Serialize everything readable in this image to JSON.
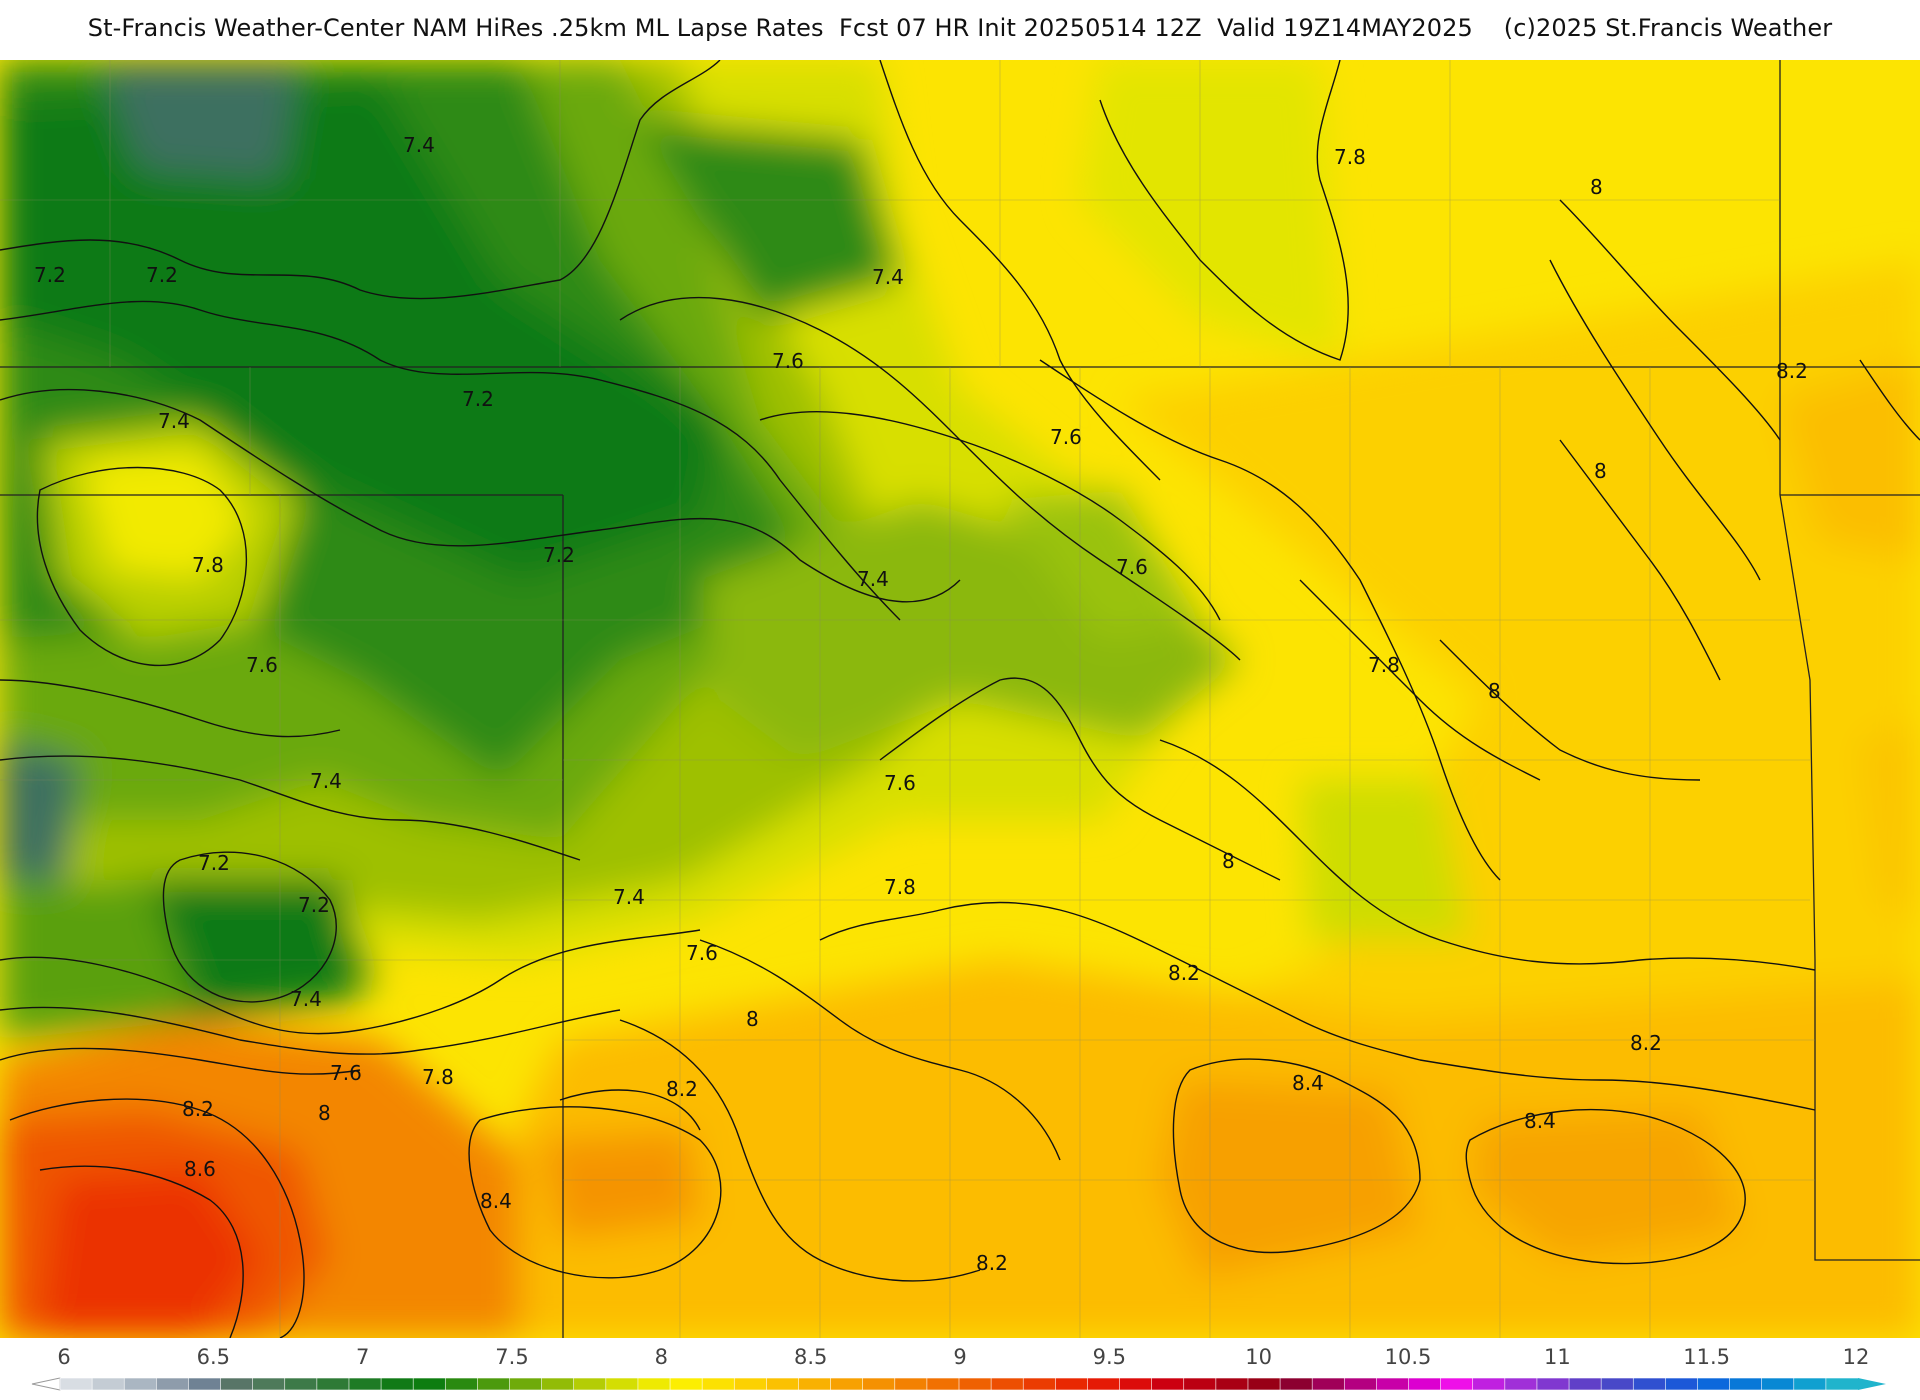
{
  "title": "St-Francis Weather-Center NAM HiRes .25km ML Lapse Rates  Fcst 07 HR Init 20250514 12Z  Valid 19Z14MAY2025    (c)2025 St.Francis Weather",
  "colorbar": {
    "ticks": [
      "6",
      "6.5",
      "7",
      "7.5",
      "8",
      "8.5",
      "9",
      "9.5",
      "10",
      "10.5",
      "11",
      "11.5",
      "12"
    ],
    "colors": [
      "#d8dde3",
      "#c4ccd4",
      "#aab6c2",
      "#8e9cab",
      "#6f8294",
      "#587567",
      "#4e7a5a",
      "#3d7a48",
      "#2e7a36",
      "#1e7b25",
      "#117a16",
      "#0d7d10",
      "#2a8a10",
      "#4c9a0d",
      "#6fab0a",
      "#92bc07",
      "#b4cd05",
      "#d4de03",
      "#eeea02",
      "#fcee02",
      "#fce102",
      "#fcd102",
      "#fbc102",
      "#f9b102",
      "#f7a102",
      "#f59102",
      "#f38102",
      "#f17102",
      "#ef6102",
      "#ed4f02",
      "#eb3c02",
      "#e92802",
      "#e51a05",
      "#dc0c0a",
      "#cc0010",
      "#bb0012",
      "#a90014",
      "#980016",
      "#8c0030",
      "#a00058",
      "#b40080",
      "#c800a8",
      "#dc00d0",
      "#ee10e8",
      "#c020e0",
      "#a030d8",
      "#8038d0",
      "#6040c8",
      "#4848c8",
      "#3050d0",
      "#1c58d8",
      "#0c68dc",
      "#0878d8",
      "#0888d4",
      "#10a0d0",
      "#20b4cc"
    ]
  },
  "contour_labels": [
    {
      "text": "7.4"
    },
    {
      "text": "7.2"
    },
    {
      "text": "7.2"
    },
    {
      "text": "7.2"
    },
    {
      "text": "7.4"
    },
    {
      "text": "7.8"
    },
    {
      "text": "7.6"
    },
    {
      "text": "7.2"
    },
    {
      "text": "7.4"
    },
    {
      "text": "7.6"
    },
    {
      "text": "7.4"
    },
    {
      "text": "7.6"
    },
    {
      "text": "7.6"
    },
    {
      "text": "7.8"
    },
    {
      "text": "8"
    },
    {
      "text": "8.2"
    },
    {
      "text": "8"
    },
    {
      "text": "7.8"
    },
    {
      "text": "8"
    },
    {
      "text": "7.4"
    },
    {
      "text": "7.2"
    },
    {
      "text": "7.2"
    },
    {
      "text": "7.4"
    },
    {
      "text": "7.4"
    },
    {
      "text": "7.6"
    },
    {
      "text": "7.6"
    },
    {
      "text": "7.8"
    },
    {
      "text": "8"
    },
    {
      "text": "8.2"
    },
    {
      "text": "8.6"
    },
    {
      "text": "8.4"
    },
    {
      "text": "8.2"
    },
    {
      "text": "8"
    },
    {
      "text": "7.8"
    },
    {
      "text": "7.6"
    },
    {
      "text": "8.2"
    },
    {
      "text": "8"
    },
    {
      "text": "8.4"
    },
    {
      "text": "8.2"
    },
    {
      "text": "8.4"
    },
    {
      "text": "8.2"
    }
  ]
}
